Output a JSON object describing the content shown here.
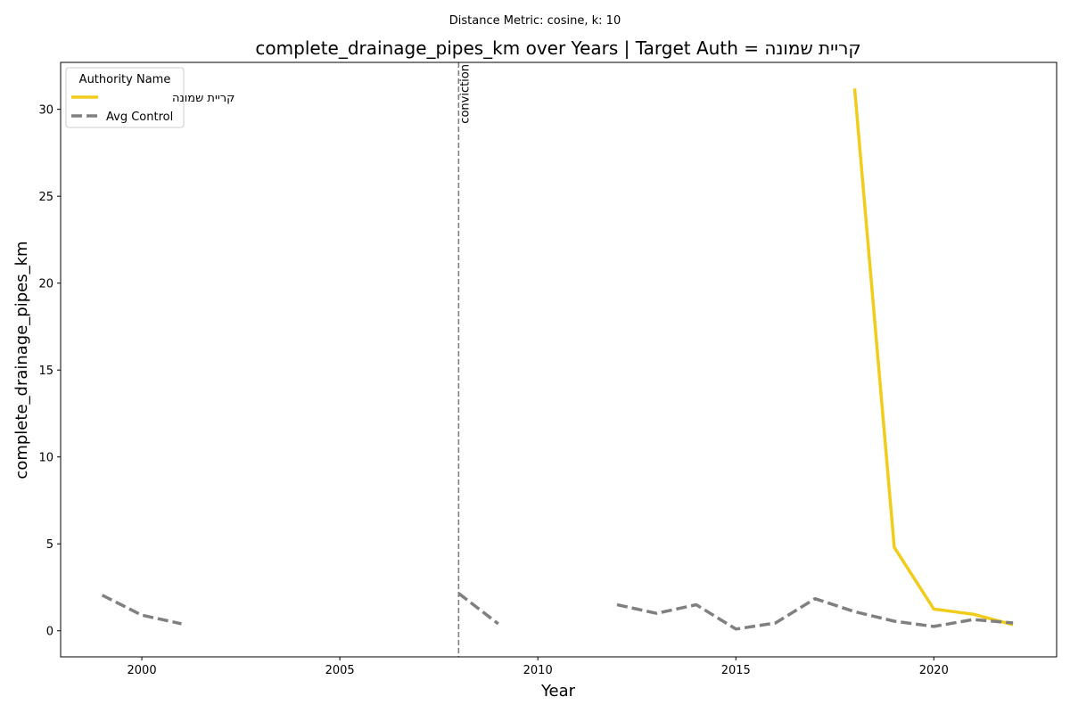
{
  "figure": {
    "suptitle": "Distance Metric: cosine, k: 10"
  },
  "chart_data": {
    "type": "line",
    "title": "complete_drainage_pipes_km over Years | Target Auth = קריית שמונה",
    "xlabel": "Year",
    "ylabel": "complete_drainage_pipes_km",
    "xlim": [
      1997.95,
      2023.1
    ],
    "ylim": [
      -1.5,
      32.7
    ],
    "xticks": [
      2000,
      2005,
      2010,
      2015,
      2020
    ],
    "yticks": [
      0,
      5,
      10,
      15,
      20,
      25,
      30
    ],
    "grid": false,
    "legend": {
      "title": "Authority Name",
      "placement": "top-left"
    },
    "series": [
      {
        "name": "קריית שמונה",
        "color": "#f2cc1a",
        "style": "solid",
        "x": [
          2018,
          2019,
          2020,
          2021,
          2022
        ],
        "y": [
          31.2,
          4.8,
          1.25,
          0.95,
          0.35
        ]
      },
      {
        "name": "Avg Control",
        "color": "#808080",
        "style": "dashed",
        "x": [
          1999,
          2000,
          2001,
          2002,
          2003,
          2004,
          2005,
          2006,
          2007,
          2008,
          2009,
          2010,
          2011,
          2012,
          2013,
          2014,
          2015,
          2016,
          2017,
          2018,
          2019,
          2020,
          2021,
          2022
        ],
        "y": [
          2.05,
          0.9,
          0.4,
          null,
          null,
          null,
          null,
          null,
          null,
          2.15,
          0.4,
          null,
          null,
          1.5,
          1.0,
          1.5,
          0.1,
          0.45,
          1.85,
          1.1,
          0.55,
          0.25,
          0.65,
          0.45
        ]
      }
    ],
    "annotations": [
      {
        "type": "vline",
        "x": 2008,
        "color": "#808080",
        "style": "dashed",
        "label": "conviction"
      }
    ]
  }
}
